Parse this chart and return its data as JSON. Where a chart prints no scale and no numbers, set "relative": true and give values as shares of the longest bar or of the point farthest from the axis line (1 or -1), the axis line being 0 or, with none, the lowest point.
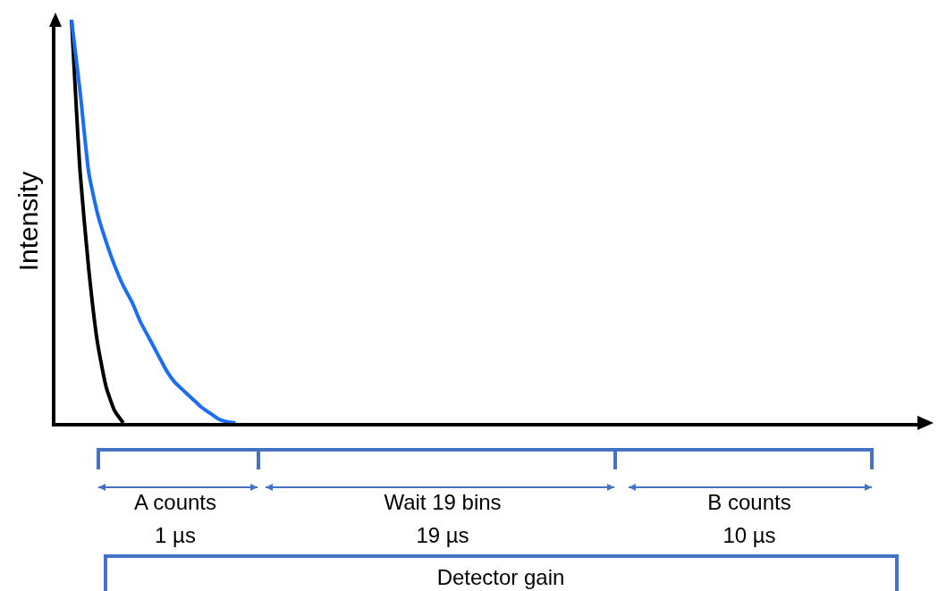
{
  "chart_data": {
    "type": "line",
    "relative": true,
    "ylabel": "Intensity",
    "grid": false,
    "marker": "none",
    "line_style": "solid",
    "categories": [
      null,
      null,
      null,
      null,
      null,
      null,
      null,
      null,
      null,
      null,
      null,
      null,
      null,
      null,
      null,
      null,
      null,
      null,
      null,
      null,
      null,
      null,
      null,
      null,
      null,
      null,
      null,
      null,
      null,
      null,
      null,
      null,
      null,
      null,
      null,
      null,
      null,
      null,
      null,
      null,
      null,
      null,
      null,
      null,
      null,
      null,
      null,
      null,
      null,
      null,
      null,
      null,
      null,
      null,
      null,
      null,
      null,
      null,
      null,
      null,
      null,
      null,
      null,
      null,
      null,
      null,
      null,
      null,
      null,
      null,
      null,
      null,
      null,
      null,
      null,
      null,
      null,
      null,
      null,
      null,
      null,
      null,
      null,
      null,
      null,
      null,
      null,
      null,
      null,
      null,
      null,
      null,
      null,
      null,
      null,
      null,
      null,
      null,
      null,
      null
    ],
    "series": [
      {
        "color": "#000000",
        "values": [
          1.0,
          0.62,
          0.38,
          0.2,
          0.09,
          0.03,
          0.0,
          null,
          null,
          null,
          null,
          null,
          null,
          null,
          null,
          null,
          null,
          null,
          null,
          null,
          null,
          null,
          null,
          null,
          null,
          null,
          null,
          null,
          null,
          null,
          null,
          null,
          null,
          null,
          null,
          null,
          null,
          null,
          null,
          null,
          null,
          null,
          null,
          null,
          null,
          null,
          null,
          null,
          null,
          null,
          null,
          null,
          null,
          null,
          null,
          null,
          null,
          null,
          null,
          null,
          null,
          null,
          null,
          null,
          null,
          null,
          null,
          null,
          null,
          null,
          null,
          null,
          null,
          null,
          null,
          null,
          null,
          null,
          null,
          null,
          null,
          null,
          null,
          null,
          null,
          null,
          null,
          null,
          null,
          null,
          null,
          null,
          null,
          null,
          null,
          null,
          null,
          null,
          null,
          null
        ]
      },
      {
        "color": "#1a6ef5",
        "values": [
          1.0,
          0.82,
          0.62,
          0.52,
          0.45,
          0.39,
          0.34,
          0.3,
          0.25,
          0.21,
          0.17,
          0.13,
          0.1,
          0.08,
          0.06,
          0.04,
          0.025,
          0.01,
          0.003,
          0.0,
          null,
          null,
          null,
          null,
          null,
          null,
          null,
          null,
          null,
          null,
          null,
          null,
          null,
          null,
          null,
          null,
          null,
          null,
          null,
          null,
          null,
          null,
          null,
          null,
          null,
          null,
          null,
          null,
          null,
          null,
          null,
          null,
          null,
          null,
          null,
          null,
          null,
          null,
          null,
          null,
          null,
          null,
          null,
          null,
          null,
          null,
          null,
          null,
          null,
          null,
          null,
          null,
          null,
          null,
          null,
          null,
          null,
          null,
          null,
          null,
          null,
          null,
          null,
          null,
          null,
          null,
          null,
          null,
          null,
          null,
          null,
          null,
          null,
          null,
          null,
          null,
          null,
          null,
          null,
          null
        ]
      }
    ],
    "annotations": [
      "A counts",
      "1 µs",
      "Wait 19 bins",
      "19 µs",
      "B counts",
      "10 µs",
      "Detector gain"
    ]
  }
}
